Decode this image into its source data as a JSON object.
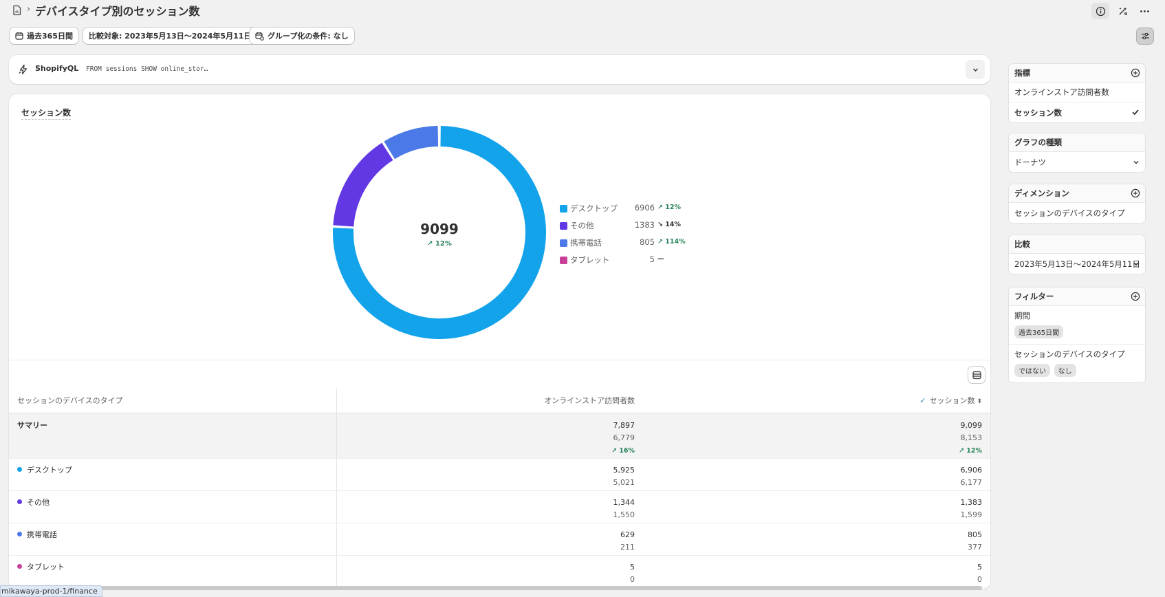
{
  "header": {
    "title": "デバイスタイプ別のセッション数",
    "separator": "›"
  },
  "filters": {
    "date_range": "過去365日間",
    "comparison": "比較対象: 2023年5月13日〜2024年5月11日",
    "grouping": "グループ化の条件: なし"
  },
  "shopifyql": {
    "label": "ShopifyQL",
    "query": "FROM sessions SHOW online_stor…"
  },
  "chart": {
    "title": "セッション数",
    "total": "9099",
    "total_change": "12%",
    "legend": [
      {
        "label": "デスクトップ",
        "value": "6906",
        "change": "12%",
        "direction": "up"
      },
      {
        "label": "その他",
        "value": "1383",
        "change": "14%",
        "direction": "down"
      },
      {
        "label": "携帯電話",
        "value": "805",
        "change": "114%",
        "direction": "up"
      },
      {
        "label": "タブレット",
        "value": "5",
        "change": "—",
        "direction": "flat"
      }
    ]
  },
  "chart_data": {
    "type": "pie",
    "title": "セッション数",
    "categories": [
      "デスクトップ",
      "その他",
      "携帯電話",
      "タブレット"
    ],
    "values": [
      6906,
      1383,
      805,
      5
    ],
    "colors": [
      "#13a3ea",
      "#6138e3",
      "#4c79e8",
      "#c9409a"
    ],
    "donut": true,
    "legend_position": "right"
  },
  "table": {
    "columns": [
      "セッションのデバイスのタイプ",
      "オンラインストア訪問者数",
      "セッション数"
    ],
    "summary": {
      "label": "サマリー",
      "visitors": [
        "7,897",
        "6,779",
        "16%"
      ],
      "sessions": [
        "9,099",
        "8,153",
        "12%"
      ]
    },
    "rows": [
      {
        "label": "デスクトップ",
        "color": "#13a3ea",
        "visitors": [
          "5,925",
          "5,021"
        ],
        "sessions": [
          "6,906",
          "6,177"
        ]
      },
      {
        "label": "その他",
        "color": "#6138e3",
        "visitors": [
          "1,344",
          "1,550"
        ],
        "sessions": [
          "1,383",
          "1,599"
        ]
      },
      {
        "label": "携帯電話",
        "color": "#4c79e8",
        "visitors": [
          "629",
          "211"
        ],
        "sessions": [
          "805",
          "377"
        ]
      },
      {
        "label": "タブレット",
        "color": "#c9409a",
        "visitors": [
          "5",
          "0"
        ],
        "sessions": [
          "5",
          "0"
        ]
      }
    ]
  },
  "sidebar": {
    "metrics": {
      "heading": "指標",
      "items": [
        "オンラインストア訪問者数",
        "セッション数"
      ],
      "selected": "セッション数"
    },
    "chart_type": {
      "heading": "グラフの種類",
      "value": "ドーナツ"
    },
    "dimension": {
      "heading": "ディメンション",
      "value": "セッションのデバイスのタイプ"
    },
    "comparison": {
      "heading": "比較",
      "value": "2023年5月13日〜2024年5月11日"
    },
    "filter": {
      "heading": "フィルター",
      "period_label": "期間",
      "period_value": "過去365日間",
      "device_label": "セッションのデバイスのタイプ",
      "device_operator": "ではない",
      "device_value": "なし"
    }
  },
  "status_url": "mikawaya-prod-1/finance"
}
